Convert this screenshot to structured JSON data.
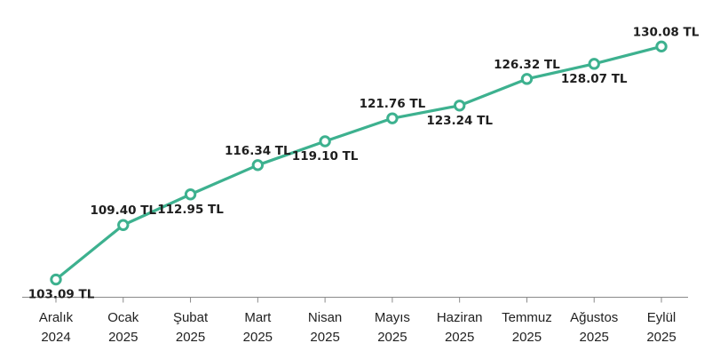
{
  "chart_data": {
    "type": "line",
    "title": "",
    "xlabel": "",
    "ylabel": "",
    "grid": false,
    "categories": [
      [
        "Aralık",
        "2024"
      ],
      [
        "Ocak",
        "2025"
      ],
      [
        "Şubat",
        "2025"
      ],
      [
        "Mart",
        "2025"
      ],
      [
        "Nisan",
        "2025"
      ],
      [
        "Mayıs",
        "2025"
      ],
      [
        "Haziran",
        "2025"
      ],
      [
        "Temmuz",
        "2025"
      ],
      [
        "Ağustos",
        "2025"
      ],
      [
        "Eylül",
        "2025"
      ]
    ],
    "series": [
      {
        "values": [
          103.09,
          109.4,
          112.95,
          116.34,
          119.1,
          121.76,
          123.24,
          126.32,
          128.07,
          130.08
        ],
        "color": "#3db18f"
      }
    ],
    "data_labels": [
      "103.09 TL",
      "109.40 TL",
      "112.95 TL",
      "116.34 TL",
      "119.10 TL",
      "121.76 TL",
      "123.24 TL",
      "126.32 TL",
      "128.07 TL",
      "130.08 TL"
    ],
    "ylim": [
      101.5,
      133.2
    ],
    "axis_color": "#8a8a8a",
    "label_color": "#1e1e1e"
  }
}
